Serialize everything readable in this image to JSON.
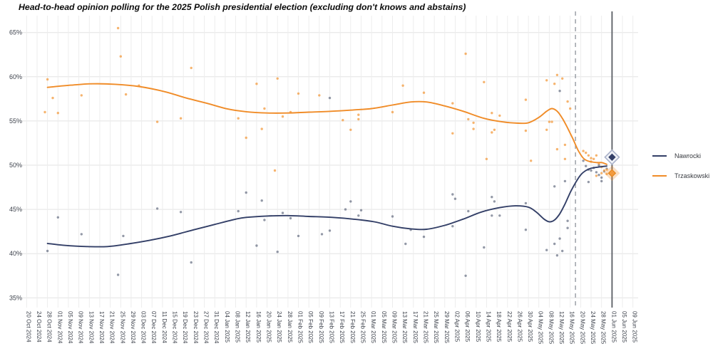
{
  "chart_data": {
    "type": "scatter",
    "title": "Head-to-head opinion polling for the 2025 Polish presidential election (excluding don't knows and abstains)",
    "legend_position": "right",
    "grid": true,
    "x_axis": {
      "day_zero": "20 Oct 2024",
      "tick_interval_days": 4,
      "tick_labels": [
        "20 Oct 2024",
        "24 Oct 2024",
        "28 Oct 2024",
        "01 Nov 2024",
        "05 Nov 2024",
        "09 Nov 2024",
        "13 Nov 2024",
        "17 Nov 2024",
        "21 Nov 2024",
        "25 Nov 2024",
        "29 Nov 2024",
        "03 Dec 2024",
        "07 Dec 2024",
        "11 Dec 2024",
        "15 Dec 2024",
        "19 Dec 2024",
        "23 Dec 2024",
        "27 Dec 2024",
        "31 Dec 2024",
        "04 Jan 2025",
        "08 Jan 2025",
        "12 Jan 2025",
        "16 Jan 2025",
        "20 Jan 2025",
        "24 Jan 2025",
        "28 Jan 2025",
        "01 Feb 2025",
        "05 Feb 2025",
        "09 Feb 2025",
        "13 Feb 2025",
        "17 Feb 2025",
        "21 Feb 2025",
        "25 Feb 2025",
        "01 Mar 2025",
        "05 Mar 2025",
        "09 Mar 2025",
        "13 Mar 2025",
        "17 Mar 2025",
        "21 Mar 2025",
        "25 Mar 2025",
        "29 Mar 2025",
        "02 Apr 2025",
        "06 Apr 2025",
        "10 Apr 2025",
        "14 Apr 2025",
        "18 Apr 2025",
        "22 Apr 2025",
        "26 Apr 2025",
        "30 Apr 2025",
        "04 May 2025",
        "08 May 2025",
        "12 May 2025",
        "16 May 2025",
        "20 May 2025",
        "24 May 2025",
        "28 May 2025",
        "01 Jun 2025",
        "05 Jun 2025",
        "09 Jun 2025"
      ]
    },
    "y_axis": {
      "tick_labels": [
        "35%",
        "40%",
        "45%",
        "50%",
        "55%",
        "60%",
        "65%"
      ],
      "tick_values": [
        35,
        40,
        45,
        50,
        55,
        60,
        65
      ],
      "range": [
        33.8,
        66.8
      ]
    },
    "events": [
      {
        "name": "first-round",
        "date": "18 May 2025",
        "day": 210,
        "style": "dashed",
        "color": "#9599a2"
      },
      {
        "name": "second-round",
        "date": "01 Jun 2025",
        "day": 224,
        "style": "solid",
        "color": "#595d63"
      }
    ],
    "series": [
      {
        "name": "Nawrocki",
        "color": "#333f67",
        "point_color": "#4d566e",
        "point_opacity": 0.6,
        "marker_style": "outlined-diamond",
        "result_marker": {
          "date": "01 Jun 2025",
          "day": 224,
          "value": 50.9
        },
        "trend": [
          [
            8,
            41.15
          ],
          [
            14,
            40.95
          ],
          [
            23,
            40.8
          ],
          [
            31,
            40.8
          ],
          [
            39,
            41.1
          ],
          [
            47,
            41.5
          ],
          [
            55,
            42.0
          ],
          [
            64,
            42.7
          ],
          [
            72,
            43.3
          ],
          [
            80,
            43.9
          ],
          [
            84,
            44.1
          ],
          [
            92,
            44.25
          ],
          [
            100,
            44.3
          ],
          [
            108,
            44.2
          ],
          [
            117,
            44.1
          ],
          [
            125,
            43.9
          ],
          [
            133,
            43.6
          ],
          [
            140,
            43.1
          ],
          [
            147,
            42.8
          ],
          [
            153,
            42.75
          ],
          [
            160,
            43.2
          ],
          [
            167,
            43.9
          ],
          [
            174,
            44.7
          ],
          [
            181,
            45.2
          ],
          [
            187,
            45.4
          ],
          [
            192,
            45.25
          ],
          [
            195,
            44.7
          ],
          [
            198,
            43.9
          ],
          [
            200,
            43.6
          ],
          [
            202,
            43.8
          ],
          [
            204,
            44.5
          ],
          [
            206,
            45.6
          ],
          [
            208,
            46.9
          ],
          [
            210,
            48.0
          ],
          [
            212,
            48.9
          ],
          [
            214,
            49.4
          ],
          [
            216,
            49.65
          ],
          [
            219,
            49.8
          ],
          [
            222,
            49.9
          ]
        ],
        "points": [
          [
            8,
            40.3
          ],
          [
            12,
            44.1
          ],
          [
            21,
            42.2
          ],
          [
            35,
            37.6
          ],
          [
            37,
            42.0
          ],
          [
            50,
            45.1
          ],
          [
            59,
            44.7
          ],
          [
            63,
            39.0
          ],
          [
            81,
            44.8
          ],
          [
            84,
            46.9
          ],
          [
            88,
            40.9
          ],
          [
            90,
            46.0
          ],
          [
            91,
            43.8
          ],
          [
            96,
            40.2
          ],
          [
            98,
            44.6
          ],
          [
            101,
            44.0
          ],
          [
            104,
            42.0
          ],
          [
            113,
            42.2
          ],
          [
            116,
            42.6
          ],
          [
            116,
            57.6
          ],
          [
            122,
            45.0
          ],
          [
            124,
            45.9
          ],
          [
            127,
            44.3
          ],
          [
            128,
            44.9
          ],
          [
            140,
            44.2
          ],
          [
            145,
            41.1
          ],
          [
            147,
            42.7
          ],
          [
            152,
            41.9
          ],
          [
            163,
            46.7
          ],
          [
            163,
            43.1
          ],
          [
            164,
            46.2
          ],
          [
            168,
            37.5
          ],
          [
            169,
            44.8
          ],
          [
            175,
            40.7
          ],
          [
            178,
            46.4
          ],
          [
            178,
            44.3
          ],
          [
            179,
            45.9
          ],
          [
            181,
            44.3
          ],
          [
            191,
            45.7
          ],
          [
            191,
            42.7
          ],
          [
            199,
            40.4
          ],
          [
            202,
            41.1
          ],
          [
            202,
            47.6
          ],
          [
            203,
            39.8
          ],
          [
            204,
            41.7
          ],
          [
            204,
            58.4
          ],
          [
            205,
            40.3
          ],
          [
            206,
            48.2
          ],
          [
            207,
            43.7
          ],
          [
            207,
            42.9
          ],
          [
            213,
            50.5
          ],
          [
            214,
            49.9
          ],
          [
            215,
            49.5
          ],
          [
            215,
            48.1
          ],
          [
            216,
            49.4
          ],
          [
            217,
            49.7
          ],
          [
            218,
            49.2
          ],
          [
            219,
            48.9
          ],
          [
            219,
            50.0
          ],
          [
            220,
            48.6
          ],
          [
            220,
            48.2
          ],
          [
            221,
            49.3
          ],
          [
            222,
            49.6
          ]
        ]
      },
      {
        "name": "Trzaskowski",
        "color": "#f08c28",
        "point_color": "#f39b3f",
        "point_opacity": 0.75,
        "marker_style": "glow-diamond",
        "result_marker": {
          "date": "01 Jun 2025",
          "day": 224,
          "value": 49.1
        },
        "trend": [
          [
            8,
            58.8
          ],
          [
            17,
            59.05
          ],
          [
            25,
            59.2
          ],
          [
            34,
            59.15
          ],
          [
            43,
            58.9
          ],
          [
            53,
            58.3
          ],
          [
            61,
            57.6
          ],
          [
            69,
            57.0
          ],
          [
            77,
            56.35
          ],
          [
            84,
            56.05
          ],
          [
            92,
            55.9
          ],
          [
            100,
            55.9
          ],
          [
            108,
            56.0
          ],
          [
            117,
            56.1
          ],
          [
            125,
            56.25
          ],
          [
            132,
            56.4
          ],
          [
            140,
            56.8
          ],
          [
            147,
            57.15
          ],
          [
            153,
            57.15
          ],
          [
            160,
            56.7
          ],
          [
            167,
            56.1
          ],
          [
            175,
            55.3
          ],
          [
            182,
            54.9
          ],
          [
            188,
            54.75
          ],
          [
            192,
            54.8
          ],
          [
            196,
            55.4
          ],
          [
            199,
            56.1
          ],
          [
            201,
            56.4
          ],
          [
            203,
            56.1
          ],
          [
            205,
            55.3
          ],
          [
            207,
            54.2
          ],
          [
            209,
            53.0
          ],
          [
            211,
            51.7
          ],
          [
            213,
            50.8
          ],
          [
            215,
            50.45
          ],
          [
            218,
            50.3
          ],
          [
            220,
            50.3
          ],
          [
            222,
            50.1
          ]
        ],
        "points": [
          [
            7,
            56.0
          ],
          [
            8,
            59.7
          ],
          [
            10,
            57.6
          ],
          [
            12,
            55.9
          ],
          [
            21,
            57.9
          ],
          [
            35,
            65.5
          ],
          [
            36,
            62.3
          ],
          [
            38,
            58.0
          ],
          [
            43,
            59.0
          ],
          [
            50,
            54.9
          ],
          [
            59,
            55.3
          ],
          [
            63,
            61.0
          ],
          [
            81,
            55.3
          ],
          [
            84,
            53.1
          ],
          [
            88,
            59.2
          ],
          [
            90,
            54.1
          ],
          [
            91,
            56.4
          ],
          [
            95,
            49.4
          ],
          [
            96,
            59.8
          ],
          [
            98,
            55.5
          ],
          [
            101,
            56.0
          ],
          [
            104,
            58.1
          ],
          [
            112,
            57.9
          ],
          [
            121,
            55.1
          ],
          [
            124,
            54.0
          ],
          [
            127,
            55.7
          ],
          [
            127,
            55.2
          ],
          [
            140,
            56.0
          ],
          [
            144,
            59.0
          ],
          [
            152,
            58.2
          ],
          [
            163,
            57.0
          ],
          [
            163,
            53.6
          ],
          [
            168,
            62.6
          ],
          [
            169,
            55.2
          ],
          [
            171,
            54.8
          ],
          [
            171,
            54.1
          ],
          [
            175,
            59.4
          ],
          [
            176,
            50.7
          ],
          [
            178,
            55.9
          ],
          [
            178,
            53.7
          ],
          [
            179,
            54.0
          ],
          [
            181,
            55.6
          ],
          [
            191,
            57.4
          ],
          [
            191,
            53.9
          ],
          [
            193,
            50.5
          ],
          [
            199,
            59.6
          ],
          [
            199,
            54.0
          ],
          [
            200,
            54.9
          ],
          [
            201,
            54.9
          ],
          [
            202,
            59.2
          ],
          [
            203,
            60.2
          ],
          [
            203,
            51.8
          ],
          [
            205,
            59.8
          ],
          [
            206,
            52.3
          ],
          [
            206,
            50.7
          ],
          [
            207,
            57.2
          ],
          [
            208,
            56.4
          ],
          [
            213,
            51.6
          ],
          [
            214,
            51.4
          ],
          [
            215,
            51.1
          ],
          [
            216,
            50.8
          ],
          [
            216,
            50.4
          ],
          [
            217,
            50.7
          ],
          [
            218,
            51.1
          ],
          [
            218,
            48.8
          ],
          [
            219,
            50.2
          ],
          [
            220,
            49.8
          ],
          [
            220,
            49.1
          ],
          [
            221,
            49.4
          ],
          [
            222,
            49.0
          ],
          [
            222,
            49.5
          ]
        ]
      }
    ]
  }
}
